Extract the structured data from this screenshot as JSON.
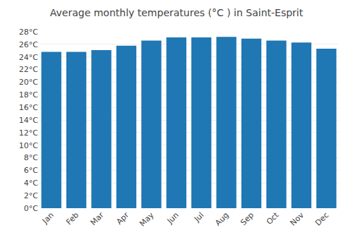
{
  "chart_data": {
    "type": "bar",
    "title": "Average monthly temperatures (°C ) in Saint-Esprit",
    "categories": [
      "Jan",
      "Feb",
      "Mar",
      "Apr",
      "May",
      "Jun",
      "Jul",
      "Aug",
      "Sep",
      "Oct",
      "Nov",
      "Dec"
    ],
    "values": [
      24.8,
      24.8,
      25.1,
      25.8,
      26.6,
      27.1,
      27.1,
      27.2,
      26.9,
      26.6,
      26.3,
      25.3
    ],
    "ylim": [
      0,
      28
    ],
    "yticks": [
      {
        "value": 0,
        "label": "0°C"
      },
      {
        "value": 2,
        "label": "2°C"
      },
      {
        "value": 4,
        "label": "4°C"
      },
      {
        "value": 6,
        "label": "6°C"
      },
      {
        "value": 8,
        "label": "8°C"
      },
      {
        "value": 10,
        "label": "10°C"
      },
      {
        "value": 12,
        "label": "12°C"
      },
      {
        "value": 14,
        "label": "14°C"
      },
      {
        "value": 16,
        "label": "16°C"
      },
      {
        "value": 18,
        "label": "18°C"
      },
      {
        "value": 20,
        "label": "20°C"
      },
      {
        "value": 22,
        "label": "22°C"
      },
      {
        "value": 24,
        "label": "24°C"
      },
      {
        "value": 26,
        "label": "26°C"
      },
      {
        "value": 28,
        "label": "28°C"
      }
    ],
    "grid": true
  }
}
